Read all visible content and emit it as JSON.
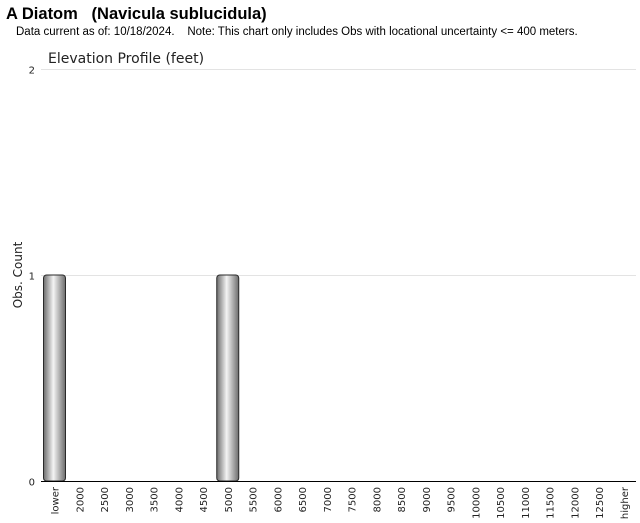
{
  "header": {
    "title": "A Diatom   (Navicula sublucidula)",
    "subtitle": "Data current as of: 10/18/2024.    Note: This chart only includes Obs with locational uncertainty <= 400 meters."
  },
  "chart_data": {
    "type": "bar",
    "title": "Elevation Profile (feet)",
    "xlabel": "",
    "ylabel": "Obs. Count",
    "ylim": [
      0,
      2
    ],
    "yticks": [
      0,
      1,
      2
    ],
    "grid": true,
    "categories": [
      "lower",
      "2000",
      "2500",
      "3000",
      "3500",
      "4000",
      "4500",
      "5000",
      "5500",
      "6000",
      "6500",
      "7000",
      "7500",
      "8000",
      "8500",
      "9000",
      "9500",
      "10000",
      "10500",
      "11000",
      "11500",
      "12000",
      "12500",
      "higher"
    ],
    "values": [
      1,
      0,
      0,
      0,
      0,
      0,
      0,
      1,
      0,
      0,
      0,
      0,
      0,
      0,
      0,
      0,
      0,
      0,
      0,
      0,
      0,
      0,
      0,
      0
    ],
    "bar_color": "#9a9a9a"
  }
}
